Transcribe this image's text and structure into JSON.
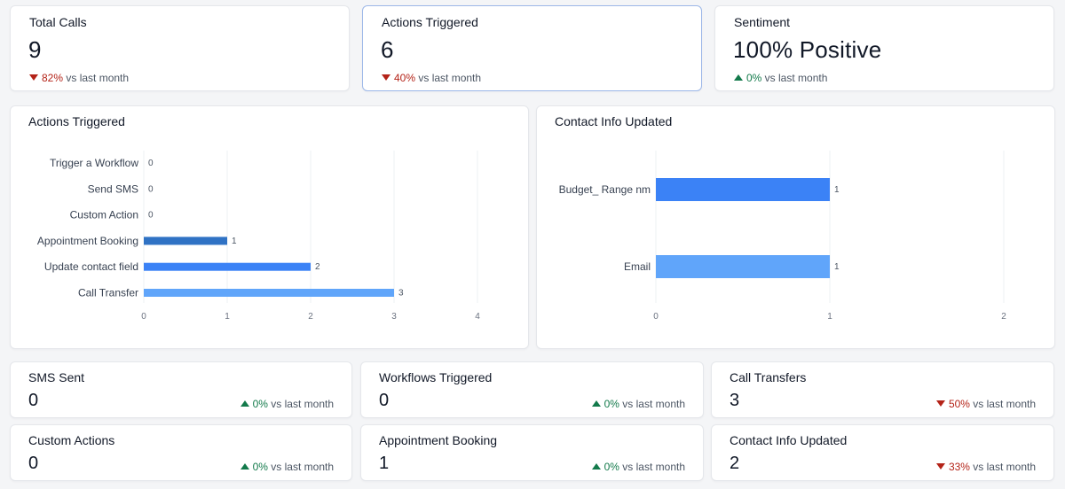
{
  "kpis": [
    {
      "title": "Total Calls",
      "value": "9",
      "trend": "down",
      "pct": "82%",
      "suffix": " vs last month"
    },
    {
      "title": "Actions Triggered",
      "value": "6",
      "trend": "down",
      "pct": "40%",
      "suffix": " vs last month"
    },
    {
      "title": "Sentiment",
      "value": "100% Positive",
      "trend": "up",
      "pct": "0%",
      "suffix": " vs last month"
    }
  ],
  "small_cards": [
    {
      "title": "SMS Sent",
      "value": "0",
      "trend": "up",
      "pct": "0%",
      "suffix": " vs last month"
    },
    {
      "title": "Workflows Triggered",
      "value": "0",
      "trend": "up",
      "pct": "0%",
      "suffix": " vs last month"
    },
    {
      "title": "Call Transfers",
      "value": "3",
      "trend": "down",
      "pct": "50%",
      "suffix": " vs last month"
    },
    {
      "title": "Custom Actions",
      "value": "0",
      "trend": "up",
      "pct": "0%",
      "suffix": " vs last month"
    },
    {
      "title": "Appointment Booking",
      "value": "1",
      "trend": "up",
      "pct": "0%",
      "suffix": " vs last month"
    },
    {
      "title": "Contact Info Updated",
      "value": "2",
      "trend": "down",
      "pct": "33%",
      "suffix": " vs last month"
    }
  ],
  "colors": {
    "down": "#b42318",
    "up": "#137a4b",
    "bar_light": "#60a5fa",
    "bar_mid": "#3b82f6",
    "bar_dark": "#2f72c4"
  },
  "chart_data": [
    {
      "type": "bar",
      "orientation": "horizontal",
      "title": "Actions Triggered",
      "categories": [
        "Trigger a Workflow",
        "Send SMS",
        "Custom Action",
        "Appointment Booking",
        "Update contact field",
        "Call Transfer"
      ],
      "values": [
        0,
        0,
        0,
        1,
        2,
        3
      ],
      "bar_colors": [
        "#60a5fa",
        "#60a5fa",
        "#60a5fa",
        "#2f72c4",
        "#3b82f6",
        "#60a5fa"
      ],
      "xticks": [
        0,
        1,
        2,
        3,
        4
      ],
      "xlim": [
        0,
        4
      ],
      "grid": true,
      "xlabel": "",
      "ylabel": ""
    },
    {
      "type": "bar",
      "orientation": "horizontal",
      "title": "Contact Info Updated",
      "categories": [
        "Budget_ Range nm",
        "Email"
      ],
      "values": [
        1,
        1
      ],
      "bar_colors": [
        "#3b82f6",
        "#60a5fa"
      ],
      "xticks": [
        0,
        1,
        2
      ],
      "xlim": [
        0,
        2
      ],
      "grid": true,
      "xlabel": "",
      "ylabel": ""
    }
  ]
}
